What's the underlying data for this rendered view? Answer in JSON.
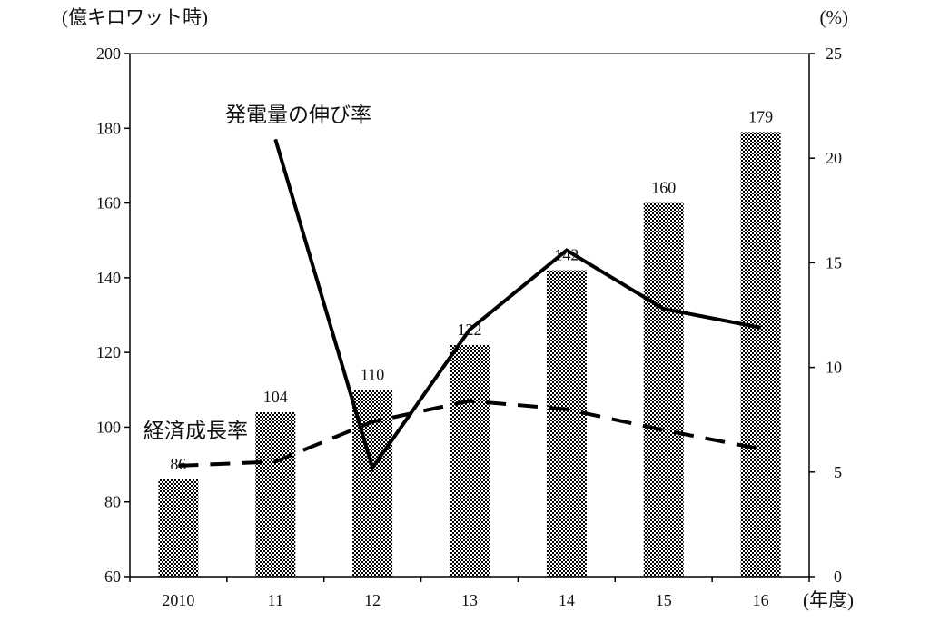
{
  "chart_data": {
    "type": "bar",
    "left_axis_unit": "(億キロワット時)",
    "right_axis_unit": "(%)",
    "x_unit": "(年度)",
    "categories": [
      "2010",
      "11",
      "12",
      "13",
      "14",
      "15",
      "16"
    ],
    "ylim_left": [
      60,
      200
    ],
    "yticks_left": [
      60,
      80,
      100,
      120,
      140,
      160,
      180,
      200
    ],
    "ylim_right": [
      0,
      25
    ],
    "yticks_right": [
      0,
      5,
      10,
      15,
      20,
      25
    ],
    "grid": false,
    "series": [
      {
        "name": "",
        "type": "bar",
        "axis": "left",
        "values": [
          86,
          104,
          110,
          122,
          142,
          160,
          179
        ],
        "data_labels": [
          "86",
          "104",
          "110",
          "122",
          "142",
          "160",
          "179"
        ]
      },
      {
        "name": "発電量の伸び率",
        "type": "line",
        "style": "solid",
        "axis": "right",
        "values": [
          null,
          20.9,
          5.2,
          11.8,
          15.6,
          12.8,
          11.9
        ]
      },
      {
        "name": "経済成長率",
        "type": "line",
        "style": "dashed",
        "axis": "right",
        "values": [
          5.3,
          5.5,
          7.4,
          8.4,
          8.0,
          7.0,
          6.1
        ]
      }
    ]
  }
}
